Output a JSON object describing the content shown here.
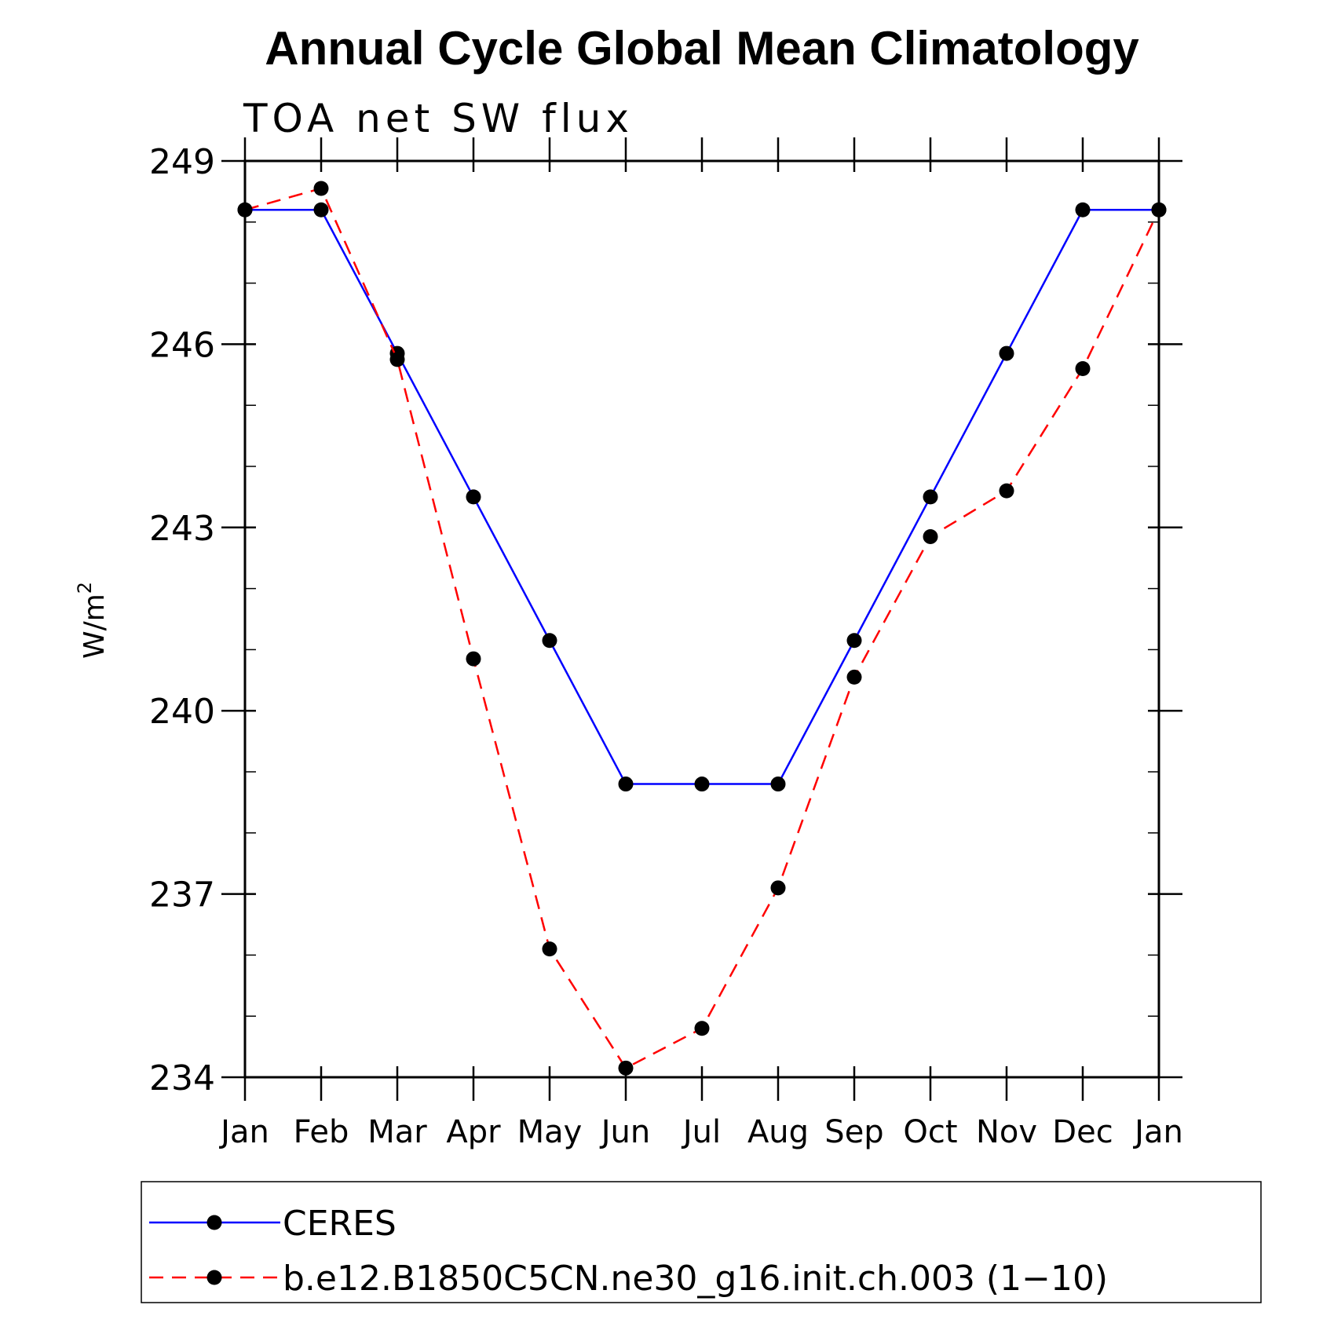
{
  "chart_data": {
    "type": "line",
    "title": "Annual Cycle Global Mean Climatology",
    "subtitle": "TOA net SW flux",
    "xlabel": "",
    "ylabel": "W/m",
    "ylabel_superscript": "2",
    "ylim": [
      234,
      249
    ],
    "yticks": [
      234,
      237,
      240,
      243,
      246,
      249
    ],
    "ytick_labels": [
      "234",
      "237",
      "240",
      "243",
      "246",
      "249"
    ],
    "categories": [
      "Jan",
      "Feb",
      "Mar",
      "Apr",
      "May",
      "Jun",
      "Jul",
      "Aug",
      "Sep",
      "Oct",
      "Nov",
      "Dec",
      "Jan"
    ],
    "grid": false,
    "legend_position": "bottom",
    "series": [
      {
        "name": "CERES",
        "color": "#0000ff",
        "line_style": "solid",
        "marker": "filled-circle",
        "values": [
          248.2,
          248.2,
          245.85,
          243.5,
          241.15,
          238.8,
          238.8,
          238.8,
          241.15,
          243.5,
          245.85,
          248.2,
          248.2
        ]
      },
      {
        "name": "b.e12.B1850C5CN.ne30_g16.init.ch.003 (1−10)",
        "color": "#ff0000",
        "line_style": "dashed",
        "marker": "filled-circle",
        "values": [
          248.2,
          248.55,
          245.75,
          240.85,
          236.1,
          234.15,
          234.8,
          237.1,
          240.55,
          242.85,
          243.6,
          245.6,
          248.2
        ]
      }
    ]
  }
}
